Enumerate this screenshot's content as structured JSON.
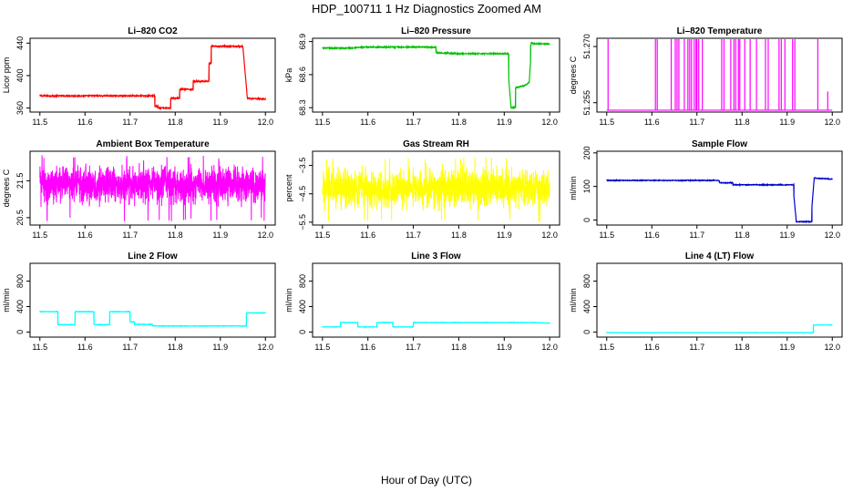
{
  "figure": {
    "title": "HDP_100711  1 Hz Diagnostics Zoomed AM",
    "xlabel": "Hour of Day (UTC)"
  },
  "chart_data": [
    {
      "type": "line",
      "title": "Li–820 CO2",
      "ylabel": "Licor ppm",
      "color": "#ff0000",
      "xlim": [
        11.5,
        12.0
      ],
      "ylim": [
        355,
        446
      ],
      "xticks": [
        11.5,
        11.6,
        11.7,
        11.8,
        11.9,
        12.0
      ],
      "ytick_labels": [
        "360",
        "400",
        "440"
      ],
      "ytick_values": [
        360,
        400,
        440
      ],
      "noise": 0.8,
      "x": [
        11.5,
        11.755,
        11.755,
        11.762,
        11.762,
        11.79,
        11.79,
        11.81,
        11.81,
        11.84,
        11.84,
        11.875,
        11.875,
        11.88,
        11.88,
        11.95,
        11.95,
        11.96,
        11.96,
        12.0
      ],
      "y": [
        375,
        375,
        362,
        362,
        360,
        360,
        372,
        372,
        383,
        383,
        393,
        393,
        415,
        415,
        436,
        436,
        436,
        372,
        372,
        371
      ]
    },
    {
      "type": "line",
      "title": "Li–820 Pressure",
      "ylabel": "kPa",
      "color": "#00c000",
      "xlim": [
        11.5,
        12.0
      ],
      "ylim": [
        68.26,
        68.93
      ],
      "xticks": [
        11.5,
        11.6,
        11.7,
        11.8,
        11.9,
        12.0
      ],
      "ytick_labels": [
        "68.3",
        "68.6",
        "68.9"
      ],
      "ytick_values": [
        68.3,
        68.6,
        68.9
      ],
      "noise": 0.005,
      "x": [
        11.5,
        11.55,
        11.6,
        11.75,
        11.75,
        11.8,
        11.87,
        11.91,
        11.91,
        11.915,
        11.915,
        11.925,
        11.925,
        11.945,
        11.955,
        11.958,
        11.958,
        11.96,
        11.965,
        12.0
      ],
      "y": [
        68.84,
        68.84,
        68.85,
        68.85,
        68.8,
        68.79,
        68.79,
        68.79,
        68.56,
        68.3,
        68.3,
        68.3,
        68.48,
        68.5,
        68.53,
        68.73,
        68.86,
        68.89,
        68.88,
        68.88
      ]
    },
    {
      "type": "spikes",
      "title": "Li–820 Temperature",
      "ylabel": "degrees C",
      "color": "#ff00ff",
      "xlim": [
        11.5,
        12.0
      ],
      "ylim": [
        51.2525,
        51.2722
      ],
      "xticks": [
        11.5,
        11.6,
        11.7,
        11.8,
        11.9,
        12.0
      ],
      "ytick_labels": [
        "51.255",
        "51.270"
      ],
      "ytick_values": [
        51.255,
        51.27
      ],
      "baseline": 51.253,
      "spike_value": 51.2722,
      "spikes_x": [
        11.503,
        11.608,
        11.612,
        11.643,
        11.652,
        11.656,
        11.66,
        11.672,
        11.68,
        11.684,
        11.688,
        11.694,
        11.698,
        11.7,
        11.704,
        11.712,
        11.755,
        11.76,
        11.775,
        11.782,
        11.786,
        11.792,
        11.795,
        11.806,
        11.818,
        11.832,
        11.852,
        11.858,
        11.882,
        11.887,
        11.895,
        11.912,
        11.917,
        11.968,
        11.99
      ],
      "partial_spike": {
        "x": 11.99,
        "y": 51.258
      }
    },
    {
      "type": "noise",
      "title": "Ambient Box Temperature",
      "ylabel": "degrees C",
      "color": "#ff00ff",
      "xlim": [
        11.5,
        12.0
      ],
      "ylim": [
        20.3,
        22.3
      ],
      "xticks": [
        11.5,
        11.6,
        11.7,
        11.8,
        11.9,
        12.0
      ],
      "ytick_labels": [
        "20.5",
        "21.5"
      ],
      "ytick_values": [
        20.5,
        21.5
      ],
      "mean": 21.4,
      "amplitude": 0.3,
      "min": 20.4,
      "max": 22.2
    },
    {
      "type": "noise",
      "title": "Gas Stream RH",
      "ylabel": "percent",
      "color": "#ffff00",
      "xlim": [
        11.5,
        12.0
      ],
      "ylim": [
        -5.6,
        -3.0
      ],
      "xticks": [
        11.5,
        11.6,
        11.7,
        11.8,
        11.9,
        12.0
      ],
      "ytick_labels": [
        "−5.5",
        "−4.5",
        "−3.5"
      ],
      "ytick_values": [
        -5.5,
        -4.5,
        -3.5
      ],
      "mean": -4.3,
      "amplitude": 0.4,
      "min": -5.5,
      "max": -3.2
    },
    {
      "type": "line",
      "title": "Sample Flow",
      "ylabel": "ml/min",
      "color": "#0000cc",
      "xlim": [
        11.5,
        12.0
      ],
      "ylim": [
        -15,
        205
      ],
      "xticks": [
        11.5,
        11.6,
        11.7,
        11.8,
        11.9,
        12.0
      ],
      "ytick_labels": [
        "0",
        "100",
        "200"
      ],
      "ytick_values": [
        0,
        100,
        200
      ],
      "noise": 1.2,
      "x": [
        11.5,
        11.75,
        11.75,
        11.78,
        11.78,
        11.915,
        11.915,
        11.92,
        11.92,
        11.955,
        11.955,
        11.96,
        11.96,
        12.0
      ],
      "y": [
        118,
        118,
        111,
        111,
        105,
        105,
        70,
        0,
        -5,
        -5,
        40,
        125,
        125,
        122
      ]
    },
    {
      "type": "line",
      "title": "Line 2 Flow",
      "ylabel": "ml/min",
      "color": "#00ffff",
      "xlim": [
        11.5,
        12.0
      ],
      "ylim": [
        -80,
        1080
      ],
      "xticks": [
        11.5,
        11.6,
        11.7,
        11.8,
        11.9,
        12.0
      ],
      "ytick_labels": [
        "0",
        "400",
        "800"
      ],
      "ytick_values": [
        0,
        400,
        800
      ],
      "noise": 4,
      "x": [
        11.5,
        11.54,
        11.54,
        11.578,
        11.578,
        11.62,
        11.62,
        11.655,
        11.655,
        11.7,
        11.7,
        11.71,
        11.71,
        11.75,
        11.75,
        11.958,
        11.958,
        12.0
      ],
      "y": [
        320,
        320,
        115,
        115,
        320,
        320,
        115,
        115,
        320,
        320,
        160,
        160,
        120,
        120,
        95,
        95,
        300,
        300
      ]
    },
    {
      "type": "line",
      "title": "Line 3 Flow",
      "ylabel": "ml/min",
      "color": "#00ffff",
      "xlim": [
        11.5,
        12.0
      ],
      "ylim": [
        -80,
        1080
      ],
      "xticks": [
        11.5,
        11.6,
        11.7,
        11.8,
        11.9,
        12.0
      ],
      "ytick_labels": [
        "0",
        "400",
        "800"
      ],
      "ytick_values": [
        0,
        400,
        800
      ],
      "noise": 3,
      "x": [
        11.5,
        11.54,
        11.54,
        11.578,
        11.578,
        11.62,
        11.62,
        11.655,
        11.655,
        11.7,
        11.7,
        11.96,
        12.0
      ],
      "y": [
        80,
        80,
        150,
        150,
        80,
        80,
        150,
        150,
        80,
        80,
        150,
        150,
        140
      ]
    },
    {
      "type": "line",
      "title": "Line 4 (LT) Flow",
      "ylabel": "ml/min",
      "color": "#00ffff",
      "xlim": [
        11.5,
        12.0
      ],
      "ylim": [
        -80,
        1080
      ],
      "xticks": [
        11.5,
        11.6,
        11.7,
        11.8,
        11.9,
        12.0
      ],
      "ytick_labels": [
        "0",
        "400",
        "800"
      ],
      "ytick_values": [
        0,
        400,
        800
      ],
      "noise": 2,
      "x": [
        11.5,
        11.958,
        11.958,
        12.0
      ],
      "y": [
        -10,
        -10,
        110,
        110
      ]
    }
  ]
}
